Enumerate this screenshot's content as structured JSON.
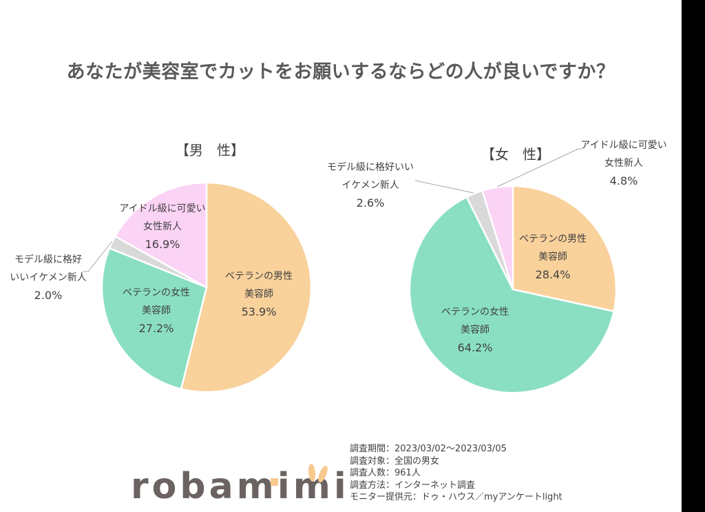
{
  "title": "あなたが美容室でカットをお願いするならどの人が良いですか？",
  "colors": {
    "veteran_male": "#F9D19B",
    "veteran_female": "#8ADFC3",
    "model_class": "#D9D9D9",
    "idol_class": "#FBD3F5",
    "leader_line": "#A6A6A6",
    "slice_border": "#FFFFFF"
  },
  "charts": {
    "male": {
      "title": "【男　性】",
      "labels": {
        "veteran_male": {
          "line1": "ベテランの男性",
          "line2": "美容師",
          "pct": "53.9%"
        },
        "veteran_female": {
          "line1": "ベテランの女性",
          "line2": "美容師",
          "pct": "27.2%"
        },
        "model_class": {
          "line1": "モデル級に格好",
          "line2": "いいイケメン新人",
          "pct": "2.0%"
        },
        "idol_class": {
          "line1": "アイドル級に可愛い",
          "line2": "女性新人",
          "pct": "16.9%"
        }
      }
    },
    "female": {
      "title": "【女　性】",
      "labels": {
        "veteran_male": {
          "line1": "ベテランの男性",
          "line2": "美容師",
          "pct": "28.4%"
        },
        "veteran_female": {
          "line1": "ベテランの女性",
          "line2": "美容師",
          "pct": "64.2%"
        },
        "model_class": {
          "line1": "モデル級に格好いい",
          "line2": "イケメン新人",
          "pct": "2.6%"
        },
        "idol_class": {
          "line1": "アイドル級に可愛い",
          "line2": "女性新人",
          "pct": "4.8%"
        }
      }
    }
  },
  "chart_data": [
    {
      "type": "pie",
      "title": "【男　性】",
      "categories": [
        "ベテランの男性美容師",
        "ベテランの女性美容師",
        "モデル級に格好いいイケメン新人",
        "アイドル級に可愛い女性新人"
      ],
      "values": [
        53.9,
        27.2,
        2.0,
        16.9
      ],
      "colors": [
        "#F9D19B",
        "#8ADFC3",
        "#D9D9D9",
        "#FBD3F5"
      ],
      "start_angle": "12 o'clock, clockwise",
      "legend": "none (data labels on/near slices)"
    },
    {
      "type": "pie",
      "title": "【女　性】",
      "categories": [
        "ベテランの男性美容師",
        "ベテランの女性美容師",
        "モデル級に格好いいイケメン新人",
        "アイドル級に可愛い女性新人"
      ],
      "values": [
        28.4,
        64.2,
        2.6,
        4.8
      ],
      "colors": [
        "#F9D19B",
        "#8ADFC3",
        "#D9D9D9",
        "#FBD3F5"
      ],
      "start_angle": "12 o'clock, clockwise",
      "legend": "none (data labels on/near slices)"
    }
  ],
  "survey": {
    "period": "調査期間：2023/03/02～2023/03/05",
    "target": "調査対象：全国の男女",
    "respondents": "調査人数：961人",
    "method": "調査方法：インターネット調査",
    "provider": "モニター提供元：ドゥ・ハウス／myアンケートlight"
  },
  "logo": {
    "text": "robamimi"
  }
}
